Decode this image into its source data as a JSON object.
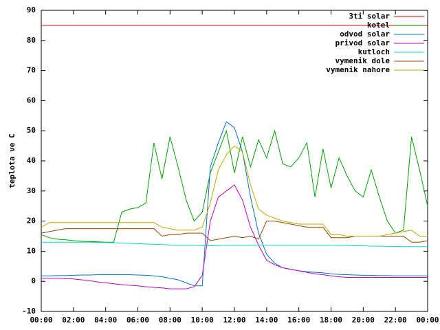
{
  "chart_data": {
    "type": "line",
    "y_label": "teplota ve C",
    "x": [
      0,
      0.5,
      1,
      1.5,
      2,
      2.5,
      3,
      3.5,
      4,
      4.5,
      5,
      5.5,
      6,
      6.5,
      7,
      7.5,
      8,
      8.5,
      9,
      9.5,
      10,
      10.5,
      11,
      11.5,
      12,
      12.5,
      13,
      13.5,
      14,
      14.5,
      15,
      15.5,
      16,
      16.5,
      17,
      17.5,
      18,
      18.5,
      19,
      19.5,
      20,
      20.5,
      21,
      21.5,
      22,
      22.5,
      23,
      23.5,
      24
    ],
    "xlim": [
      0,
      24
    ],
    "xticks": [
      {
        "value": 0,
        "label": "00:00"
      },
      {
        "value": 2,
        "label": "02:00"
      },
      {
        "value": 4,
        "label": "04:00"
      },
      {
        "value": 6,
        "label": "06:00"
      },
      {
        "value": 8,
        "label": "08:00"
      },
      {
        "value": 10,
        "label": "10:00"
      },
      {
        "value": 12,
        "label": "12:00"
      },
      {
        "value": 14,
        "label": "14:00"
      },
      {
        "value": 16,
        "label": "16:00"
      },
      {
        "value": 18,
        "label": "18:00"
      },
      {
        "value": 20,
        "label": "20:00"
      },
      {
        "value": 22,
        "label": "22:00"
      },
      {
        "value": 24,
        "label": "00:00"
      }
    ],
    "ylim": [
      -10,
      90
    ],
    "yticks": [
      -10,
      0,
      10,
      20,
      30,
      40,
      50,
      60,
      70,
      80,
      90
    ],
    "grid": false,
    "legend": "top-right",
    "series": [
      {
        "name": "3ti solar",
        "color": "#d00000",
        "values": [
          85,
          85,
          85,
          85,
          85,
          85,
          85,
          85,
          85,
          85,
          85,
          85,
          85,
          85,
          85,
          85,
          85,
          85,
          85,
          85,
          85,
          85,
          85,
          85,
          85,
          85,
          85,
          85,
          85,
          85,
          85,
          85,
          85,
          85,
          85,
          85,
          85,
          85,
          85,
          85,
          85,
          85,
          85,
          85,
          85,
          85,
          85,
          85,
          85
        ]
      },
      {
        "name": "kotel",
        "color": "#00a000",
        "values": [
          15.5,
          14.5,
          14,
          13.8,
          13.5,
          13.3,
          13.2,
          13.1,
          13,
          13,
          23,
          24,
          24.5,
          26,
          46,
          34,
          48,
          38,
          27,
          20,
          23,
          36,
          43,
          50,
          36,
          48,
          38,
          47,
          41,
          50,
          39,
          38,
          41,
          46,
          28,
          44,
          31,
          41,
          35,
          30,
          28,
          37,
          28,
          20,
          16,
          17,
          48,
          37,
          25
        ]
      },
      {
        "name": "odvod solar",
        "color": "#0070d0",
        "values": [
          1.8,
          1.8,
          1.9,
          1.9,
          2,
          2.1,
          2.1,
          2.2,
          2.2,
          2.2,
          2.2,
          2.2,
          2.1,
          2,
          1.8,
          1.5,
          1,
          0.5,
          -0.5,
          -1.5,
          -1.5,
          38,
          46,
          53,
          51,
          43,
          28,
          16,
          9,
          6,
          4.5,
          4,
          3.5,
          3.2,
          3,
          2.8,
          2.5,
          2.3,
          2.2,
          2.1,
          2,
          2,
          1.9,
          1.9,
          1.8,
          1.8,
          1.8,
          1.8,
          1.8
        ]
      },
      {
        "name": "privod solar",
        "color": "#c000c0",
        "values": [
          1,
          1,
          1,
          0.9,
          0.8,
          0.5,
          0.2,
          -0.2,
          -0.5,
          -0.8,
          -1.1,
          -1.3,
          -1.5,
          -1.8,
          -2,
          -2.2,
          -2.5,
          -2.5,
          -2.5,
          -1.8,
          2,
          20,
          28,
          30,
          32,
          27,
          18,
          12,
          7,
          5.5,
          4.5,
          4,
          3.5,
          3,
          2.5,
          2.2,
          1.8,
          1.5,
          1.3,
          1.3,
          1.3,
          1.3,
          1.3,
          1.3,
          1.3,
          1.3,
          1.3,
          1.3,
          1.3
        ]
      },
      {
        "name": "kutloch",
        "color": "#00d8d8",
        "values": [
          13,
          13,
          13,
          13,
          13,
          13,
          13,
          12.9,
          12.9,
          12.8,
          12.7,
          12.6,
          12.5,
          12.4,
          12.3,
          12.2,
          12.1,
          12,
          12,
          12,
          11.8,
          11.8,
          11.9,
          12,
          12,
          12,
          12,
          12,
          12,
          12,
          12,
          12,
          12,
          12,
          12,
          12,
          12,
          11.9,
          11.9,
          11.8,
          11.8,
          11.7,
          11.7,
          11.6,
          11.6,
          11.5,
          11.5,
          11.5,
          11.5
        ]
      },
      {
        "name": "vymenik dole",
        "color": "#a04000",
        "values": [
          16,
          16.5,
          17,
          17.5,
          17.5,
          17.5,
          17.5,
          17.5,
          17.5,
          17.5,
          17.5,
          17.5,
          17.5,
          17.5,
          17.5,
          15,
          15.5,
          15.5,
          16,
          16,
          16,
          13.5,
          14,
          14.5,
          15,
          14.5,
          15,
          14,
          20,
          20,
          19.5,
          19,
          18.5,
          18,
          18,
          18,
          14.5,
          14.5,
          14.5,
          15,
          15,
          15,
          15,
          15,
          15,
          15,
          13,
          13,
          13.5
        ]
      },
      {
        "name": "vymenik nahore",
        "color": "#c0a800",
        "values": [
          18,
          19.5,
          19.5,
          19.5,
          19.5,
          19.5,
          19.5,
          19.5,
          19.5,
          19.5,
          19.5,
          19.5,
          19.5,
          19.5,
          19.5,
          18,
          17.5,
          17,
          17,
          17,
          18,
          26,
          37,
          42,
          45,
          43,
          32,
          24,
          22,
          21,
          20,
          19.5,
          19,
          19,
          19,
          19,
          15.5,
          15.5,
          15,
          15,
          15,
          15,
          15,
          15.5,
          16,
          16.5,
          17,
          15,
          15
        ]
      }
    ]
  }
}
